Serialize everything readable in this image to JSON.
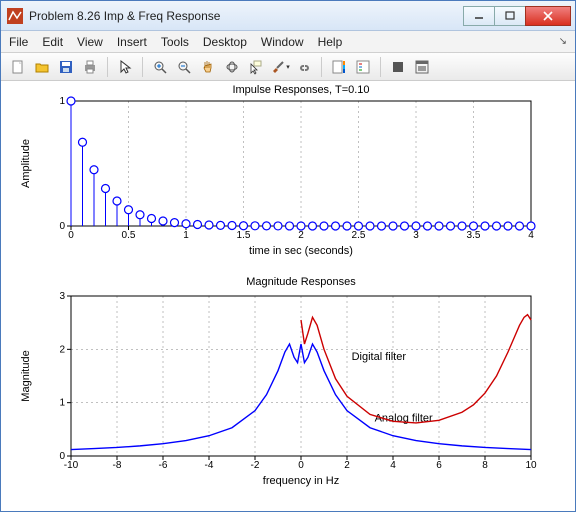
{
  "window": {
    "title": "Problem 8.26 Imp & Freq Response"
  },
  "menu": {
    "items": [
      "File",
      "Edit",
      "View",
      "Insert",
      "Tools",
      "Desktop",
      "Window",
      "Help"
    ]
  },
  "toolbar_icons": [
    "new",
    "open",
    "save",
    "print",
    "arrow",
    "zoomin",
    "zoomout",
    "pan",
    "rotate",
    "cursor",
    "brush",
    "link",
    "colorbar",
    "legend",
    "stop",
    "dock"
  ],
  "charts": {
    "impulse": {
      "type": "stem",
      "title": "Impulse Responses, T=0.10",
      "xlabel": "time in sec (seconds)",
      "ylabel": "Amplitude",
      "xlim": [
        0,
        4
      ],
      "ylim": [
        0,
        1
      ],
      "xticks": [
        0,
        0.5,
        1,
        1.5,
        2,
        2.5,
        3,
        3.5,
        4
      ],
      "yticks": [
        0,
        1
      ],
      "grid": true,
      "grid_color": "#808080",
      "grid_dash": "2,3",
      "line_color": "#0000ff",
      "marker": "circle",
      "marker_size": 4,
      "background": "#ffffff",
      "x": [
        0,
        0.1,
        0.2,
        0.3,
        0.4,
        0.5,
        0.6,
        0.7,
        0.8,
        0.9,
        1,
        1.1,
        1.2,
        1.3,
        1.4,
        1.5,
        1.6,
        1.7,
        1.8,
        1.9,
        2,
        2.1,
        2.2,
        2.3,
        2.4,
        2.5,
        2.6,
        2.7,
        2.8,
        2.9,
        3,
        3.1,
        3.2,
        3.3,
        3.4,
        3.5,
        3.6,
        3.7,
        3.8,
        3.9,
        4
      ],
      "y": [
        1,
        0.67,
        0.45,
        0.3,
        0.2,
        0.13,
        0.09,
        0.06,
        0.04,
        0.027,
        0.018,
        0.012,
        0.008,
        0.005,
        0.004,
        0.002,
        0.0016,
        0.001,
        0.0007,
        0.0005,
        0.0003,
        0.0002,
        0.00015,
        0.0001,
        0,
        0,
        0,
        0,
        0,
        0,
        0,
        0,
        0,
        0,
        0,
        0,
        0,
        0,
        0,
        0,
        0
      ]
    },
    "magnitude": {
      "type": "line",
      "title": "Magnitude Responses",
      "xlabel": "frequency in Hz",
      "ylabel": "Magnitude",
      "xlim": [
        -10,
        10
      ],
      "ylim": [
        0,
        3
      ],
      "xticks": [
        -10,
        -8,
        -6,
        -4,
        -2,
        0,
        2,
        4,
        6,
        8,
        10
      ],
      "yticks": [
        0,
        1,
        2,
        3
      ],
      "grid": true,
      "grid_color": "#808080",
      "grid_dash": "2,3",
      "background": "#ffffff",
      "series": [
        {
          "name": "Analog filter",
          "color": "#0000ff",
          "line_width": 1.4,
          "annotation": {
            "text": "Analog filter",
            "x": 3.2,
            "y": 0.65
          },
          "x": [
            -10,
            -9,
            -8,
            -7,
            -6,
            -5,
            -4,
            -3,
            -2,
            -1.5,
            -1,
            -0.7,
            -0.5,
            -0.3,
            -0.15,
            0,
            0.15,
            0.3,
            0.5,
            0.7,
            1,
            1.5,
            2,
            3,
            4,
            5,
            6,
            7,
            8,
            9,
            10
          ],
          "y": [
            0.12,
            0.14,
            0.16,
            0.19,
            0.23,
            0.29,
            0.38,
            0.53,
            0.85,
            1.15,
            1.6,
            1.95,
            2.1,
            1.85,
            1.75,
            2.1,
            1.75,
            1.85,
            2.1,
            1.95,
            1.6,
            1.15,
            0.85,
            0.53,
            0.38,
            0.29,
            0.23,
            0.19,
            0.16,
            0.14,
            0.12
          ]
        },
        {
          "name": "Digital filter",
          "color": "#cc0000",
          "line_width": 1.4,
          "annotation": {
            "text": "Digital filter",
            "x": 2.2,
            "y": 1.8
          },
          "x": [
            0,
            0.15,
            0.3,
            0.5,
            0.7,
            1,
            1.5,
            2,
            3,
            4,
            5,
            6,
            7,
            7.5,
            8,
            8.5,
            9,
            9.3,
            9.5,
            9.7,
            9.85,
            10
          ],
          "y": [
            2.55,
            2.1,
            2.3,
            2.6,
            2.45,
            2.0,
            1.45,
            1.12,
            0.78,
            0.65,
            0.62,
            0.67,
            0.82,
            0.96,
            1.18,
            1.5,
            1.95,
            2.25,
            2.45,
            2.6,
            2.65,
            2.55
          ]
        }
      ]
    }
  },
  "colors": {
    "titlebar_grad_top": "#eef4fb",
    "titlebar_grad_bot": "#d8e6f7",
    "close_btn": "#d93020"
  }
}
